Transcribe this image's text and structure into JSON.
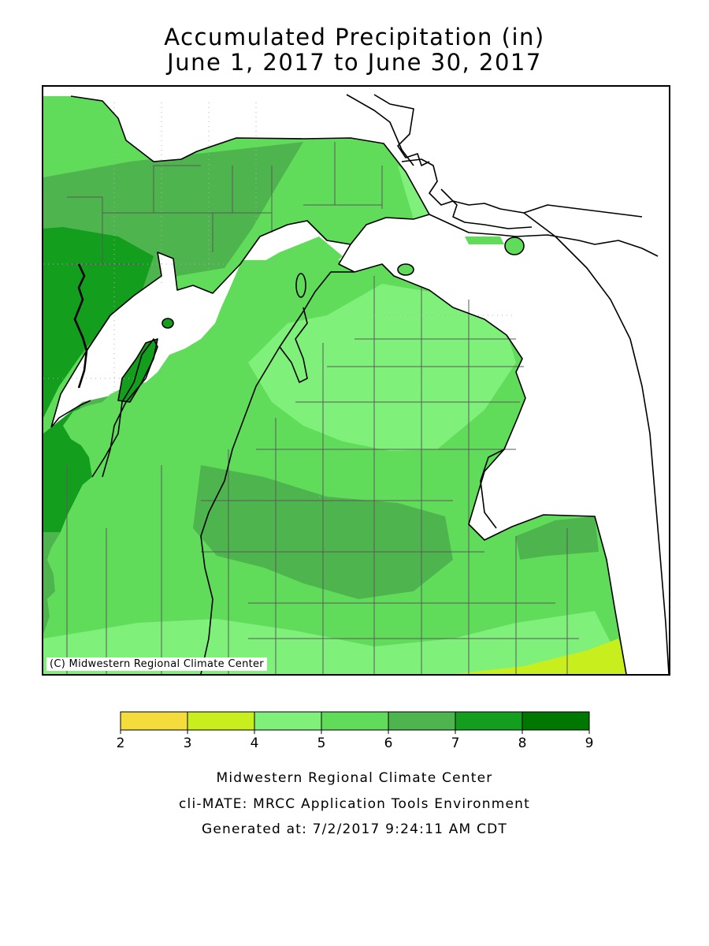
{
  "map": {
    "title_line1": "Accumulated Precipitation (in)",
    "title_line2": "June 1, 2017 to June 30, 2017",
    "copyright": "(C) Midwestern Regional Climate Center",
    "region": "Michigan",
    "variable": "Accumulated Precipitation",
    "units": "in"
  },
  "legend": {
    "bins": [
      {
        "from": 2,
        "to": 3,
        "color": "#f3dc3c"
      },
      {
        "from": 3,
        "to": 4,
        "color": "#c8ee1e"
      },
      {
        "from": 4,
        "to": 5,
        "color": "#7ff07a"
      },
      {
        "from": 5,
        "to": 6,
        "color": "#60dc5a"
      },
      {
        "from": 6,
        "to": 7,
        "color": "#4db44e"
      },
      {
        "from": 7,
        "to": 8,
        "color": "#149e1e"
      },
      {
        "from": 8,
        "to": 9,
        "color": "#007800"
      }
    ],
    "tick_labels": [
      "2",
      "3",
      "4",
      "5",
      "6",
      "7",
      "8",
      "9"
    ]
  },
  "footer": {
    "line1": "Midwestern Regional Climate Center",
    "line2": "cli-MATE: MRCC Application Tools Environment",
    "line3": "Generated at: 7/2/2017 9:24:11 AM CDT"
  }
}
